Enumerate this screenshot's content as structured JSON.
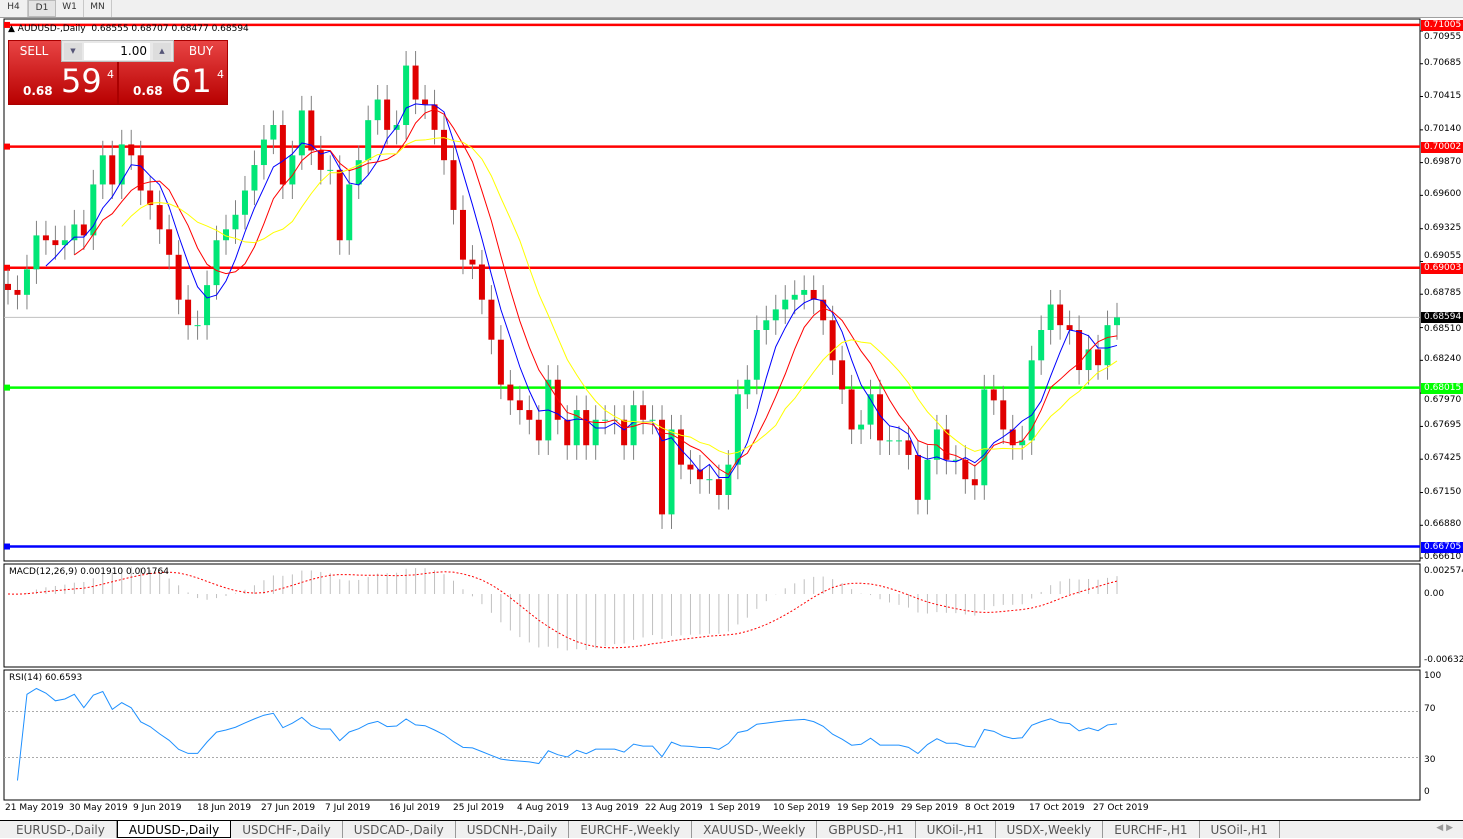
{
  "timeframes": [
    {
      "label": "H4"
    },
    {
      "label": "D1",
      "selected": true
    },
    {
      "label": "W1"
    },
    {
      "label": "MN"
    }
  ],
  "chart_header": {
    "symbol": "AUDUSD-,Daily",
    "ohlc": "0.68555 0.68707 0.68477 0.68594"
  },
  "trade_panel": {
    "sell_label": "SELL",
    "buy_label": "BUY",
    "lot": "1.00",
    "sell_prefix": "0.68",
    "sell_big": "59",
    "sell_sup": "4",
    "buy_prefix": "0.68",
    "buy_big": "61",
    "buy_sup": "4"
  },
  "price_axis": [
    "0.70955",
    "0.70685",
    "0.70415",
    "0.70140",
    "0.69870",
    "0.69600",
    "0.69325",
    "0.69055",
    "0.68785",
    "0.68510",
    "0.68240",
    "0.67970",
    "0.67695",
    "0.67425",
    "0.67150",
    "0.66880",
    "0.66610"
  ],
  "levels": [
    {
      "price": 0.71005,
      "label": "0.71005",
      "color": "#ff0000"
    },
    {
      "price": 0.70002,
      "label": "0.70002",
      "color": "#ff0000"
    },
    {
      "price": 0.69003,
      "label": "0.69003",
      "color": "#ff0000"
    },
    {
      "price": 0.68015,
      "label": "0.68015",
      "color": "#00ff00"
    },
    {
      "price": 0.66705,
      "label": "0.66705",
      "color": "#0000ff"
    }
  ],
  "current_price": {
    "label": "0.68594",
    "price": 0.68594
  },
  "macd": {
    "title": "MACD(12,26,9) 0.001910 0.001764",
    "axis": [
      "0.002574",
      "0.00",
      "-0.006326"
    ]
  },
  "rsi": {
    "title": "RSI(14) 60.6593",
    "axis": [
      "100",
      "70",
      "30",
      "0"
    ],
    "color": "#1e90ff"
  },
  "dates": [
    "21 May 2019",
    "30 May 2019",
    "9 Jun 2019",
    "18 Jun 2019",
    "27 Jun 2019",
    "7 Jul 2019",
    "16 Jul 2019",
    "25 Jul 2019",
    "4 Aug 2019",
    "13 Aug 2019",
    "22 Aug 2019",
    "1 Sep 2019",
    "10 Sep 2019",
    "19 Sep 2019",
    "29 Sep 2019",
    "8 Oct 2019",
    "17 Oct 2019",
    "27 Oct 2019"
  ],
  "tabs": [
    {
      "label": "EURUSD-,Daily"
    },
    {
      "label": "AUDUSD-,Daily",
      "selected": true
    },
    {
      "label": "USDCHF-,Daily"
    },
    {
      "label": "USDCAD-,Daily"
    },
    {
      "label": "USDCNH-,Daily"
    },
    {
      "label": "EURCHF-,Weekly"
    },
    {
      "label": "XAUUSD-,Weekly"
    },
    {
      "label": "GBPUSD-,H1"
    },
    {
      "label": "UKOil-,H1"
    },
    {
      "label": "USDX-,Weekly"
    },
    {
      "label": "EURCHF-,H1"
    },
    {
      "label": "USOil-,H1"
    }
  ],
  "chart_data": {
    "type": "candlestick",
    "ylim": [
      0.6661,
      0.71005
    ],
    "bull_color": "#00e676",
    "bear_color": "#e00000",
    "closes": [
      0.6882,
      0.6878,
      0.6899,
      0.6927,
      0.6923,
      0.6919,
      0.6923,
      0.6936,
      0.6927,
      0.6969,
      0.6993,
      0.6969,
      0.7002,
      0.6993,
      0.6964,
      0.6952,
      0.6932,
      0.6911,
      0.6874,
      0.6853,
      0.6853,
      0.6886,
      0.6923,
      0.6932,
      0.6944,
      0.6964,
      0.6985,
      0.7006,
      0.7018,
      0.6969,
      0.6993,
      0.703,
      0.6997,
      0.6981,
      0.6981,
      0.6923,
      0.6969,
      0.6989,
      0.7022,
      0.7039,
      0.7014,
      0.7018,
      0.7067,
      0.7039,
      0.7035,
      0.7014,
      0.6989,
      0.6948,
      0.6907,
      0.6903,
      0.6874,
      0.6841,
      0.6804,
      0.6791,
      0.6783,
      0.6775,
      0.6758,
      0.6808,
      0.6775,
      0.6754,
      0.6783,
      0.6754,
      0.6775,
      0.6775,
      0.6775,
      0.6754,
      0.6787,
      0.6775,
      0.6775,
      0.6697,
      0.6767,
      0.6738,
      0.6734,
      0.6726,
      0.6726,
      0.6713,
      0.6738,
      0.6796,
      0.6808,
      0.6849,
      0.6857,
      0.6866,
      0.6874,
      0.6878,
      0.6882,
      0.6874,
      0.6857,
      0.6824,
      0.68,
      0.6767,
      0.6771,
      0.6796,
      0.6758,
      0.6758,
      0.6758,
      0.6746,
      0.6709,
      0.6742,
      0.6767,
      0.6742,
      0.6742,
      0.6726,
      0.6721,
      0.68,
      0.6791,
      0.6767,
      0.6754,
      0.6758,
      0.6824,
      0.6849,
      0.687,
      0.6853,
      0.6849,
      0.6816,
      0.6833,
      0.682,
      0.6853,
      0.68594
    ],
    "moving_averages": [
      {
        "color": "#0000ff"
      },
      {
        "color": "#ff0000"
      },
      {
        "color": "#ffff00"
      }
    ]
  }
}
